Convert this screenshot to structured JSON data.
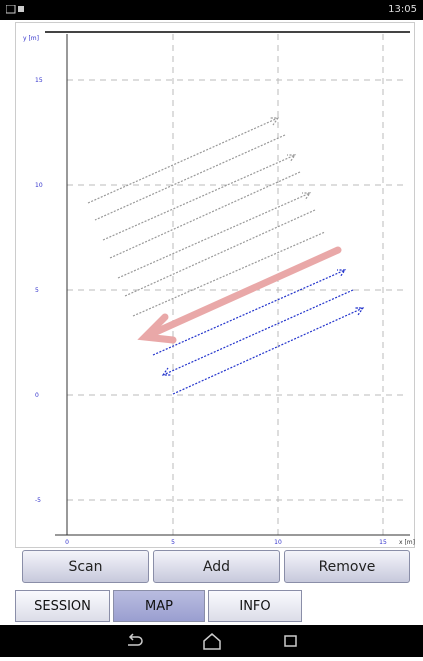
{
  "status_bar": {
    "time": "13:05"
  },
  "plot": {
    "y_label": "y [m]",
    "x_label": "x [m]",
    "y_ticks": [
      "15",
      "10",
      "5",
      "0",
      "-5"
    ],
    "x_ticks": [
      "0",
      "5",
      "10",
      "15"
    ]
  },
  "buttons": [
    "Scan",
    "Add",
    "Remove"
  ],
  "tabs": [
    "SESSION",
    "MAP",
    "INFO"
  ]
}
